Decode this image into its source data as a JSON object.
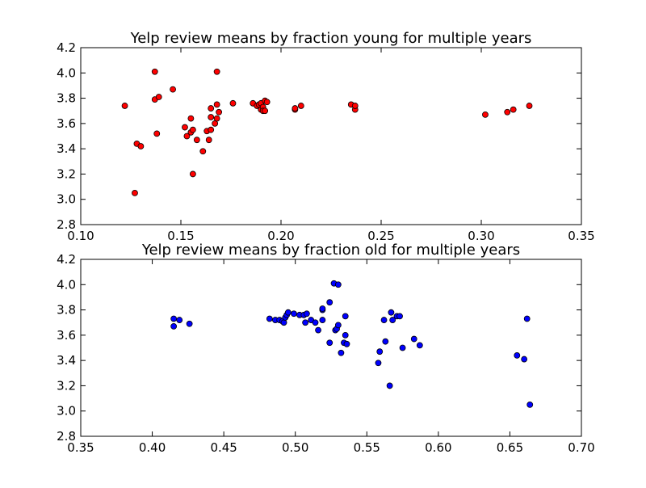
{
  "chart_data": [
    {
      "type": "scatter",
      "title": "Yelp review means by fraction young for multiple years",
      "xlabel": "",
      "ylabel": "",
      "xlim": [
        0.1,
        0.35
      ],
      "ylim": [
        2.8,
        4.2
      ],
      "xticks": [
        "0.10",
        "0.15",
        "0.20",
        "0.25",
        "0.30",
        "0.35"
      ],
      "yticks": [
        "2.8",
        "3.0",
        "3.2",
        "3.4",
        "3.6",
        "3.8",
        "4.0",
        "4.2"
      ],
      "grid": false,
      "marker_color": "#ff0000",
      "points": [
        [
          0.122,
          3.74
        ],
        [
          0.127,
          3.05
        ],
        [
          0.128,
          3.44
        ],
        [
          0.13,
          3.42
        ],
        [
          0.137,
          4.01
        ],
        [
          0.137,
          3.79
        ],
        [
          0.138,
          3.52
        ],
        [
          0.139,
          3.81
        ],
        [
          0.146,
          3.87
        ],
        [
          0.152,
          3.57
        ],
        [
          0.153,
          3.5
        ],
        [
          0.155,
          3.53
        ],
        [
          0.155,
          3.64
        ],
        [
          0.156,
          3.55
        ],
        [
          0.156,
          3.2
        ],
        [
          0.158,
          3.47
        ],
        [
          0.161,
          3.38
        ],
        [
          0.163,
          3.54
        ],
        [
          0.164,
          3.47
        ],
        [
          0.165,
          3.72
        ],
        [
          0.165,
          3.55
        ],
        [
          0.165,
          3.65
        ],
        [
          0.167,
          3.6
        ],
        [
          0.168,
          3.64
        ],
        [
          0.168,
          4.01
        ],
        [
          0.168,
          3.75
        ],
        [
          0.169,
          3.69
        ],
        [
          0.176,
          3.76
        ],
        [
          0.186,
          3.76
        ],
        [
          0.188,
          3.74
        ],
        [
          0.189,
          3.75
        ],
        [
          0.19,
          3.71
        ],
        [
          0.19,
          3.76
        ],
        [
          0.191,
          3.73
        ],
        [
          0.191,
          3.7
        ],
        [
          0.192,
          3.78
        ],
        [
          0.192,
          3.7
        ],
        [
          0.193,
          3.77
        ],
        [
          0.207,
          3.71
        ],
        [
          0.207,
          3.72
        ],
        [
          0.21,
          3.74
        ],
        [
          0.235,
          3.75
        ],
        [
          0.237,
          3.71
        ],
        [
          0.237,
          3.74
        ],
        [
          0.302,
          3.67
        ],
        [
          0.313,
          3.69
        ],
        [
          0.316,
          3.71
        ],
        [
          0.324,
          3.74
        ]
      ]
    },
    {
      "type": "scatter",
      "title": "Yelp review means by fraction old for multiple years",
      "xlabel": "",
      "ylabel": "",
      "xlim": [
        0.35,
        0.7
      ],
      "ylim": [
        2.8,
        4.2
      ],
      "xticks": [
        "0.35",
        "0.40",
        "0.45",
        "0.50",
        "0.55",
        "0.60",
        "0.65",
        "0.70"
      ],
      "yticks": [
        "2.8",
        "3.0",
        "3.2",
        "3.4",
        "3.6",
        "3.8",
        "4.0",
        "4.2"
      ],
      "grid": false,
      "marker_color": "#0000ff",
      "points": [
        [
          0.415,
          3.73
        ],
        [
          0.415,
          3.67
        ],
        [
          0.419,
          3.72
        ],
        [
          0.426,
          3.69
        ],
        [
          0.482,
          3.73
        ],
        [
          0.486,
          3.72
        ],
        [
          0.489,
          3.72
        ],
        [
          0.491,
          3.71
        ],
        [
          0.492,
          3.7
        ],
        [
          0.493,
          3.74
        ],
        [
          0.494,
          3.76
        ],
        [
          0.495,
          3.78
        ],
        [
          0.499,
          3.77
        ],
        [
          0.503,
          3.76
        ],
        [
          0.506,
          3.76
        ],
        [
          0.507,
          3.7
        ],
        [
          0.508,
          3.77
        ],
        [
          0.511,
          3.72
        ],
        [
          0.514,
          3.7
        ],
        [
          0.516,
          3.64
        ],
        [
          0.519,
          3.8
        ],
        [
          0.519,
          3.81
        ],
        [
          0.519,
          3.72
        ],
        [
          0.524,
          3.86
        ],
        [
          0.524,
          3.54
        ],
        [
          0.527,
          4.01
        ],
        [
          0.528,
          3.64
        ],
        [
          0.529,
          3.65
        ],
        [
          0.53,
          4.0
        ],
        [
          0.53,
          3.68
        ],
        [
          0.532,
          3.46
        ],
        [
          0.534,
          3.54
        ],
        [
          0.535,
          3.75
        ],
        [
          0.535,
          3.6
        ],
        [
          0.536,
          3.53
        ],
        [
          0.558,
          3.38
        ],
        [
          0.559,
          3.47
        ],
        [
          0.562,
          3.72
        ],
        [
          0.563,
          3.55
        ],
        [
          0.566,
          3.2
        ],
        [
          0.567,
          3.78
        ],
        [
          0.568,
          3.72
        ],
        [
          0.571,
          3.75
        ],
        [
          0.573,
          3.75
        ],
        [
          0.575,
          3.5
        ],
        [
          0.583,
          3.57
        ],
        [
          0.587,
          3.52
        ],
        [
          0.655,
          3.44
        ],
        [
          0.66,
          3.41
        ],
        [
          0.662,
          3.73
        ],
        [
          0.664,
          3.05
        ]
      ]
    }
  ]
}
